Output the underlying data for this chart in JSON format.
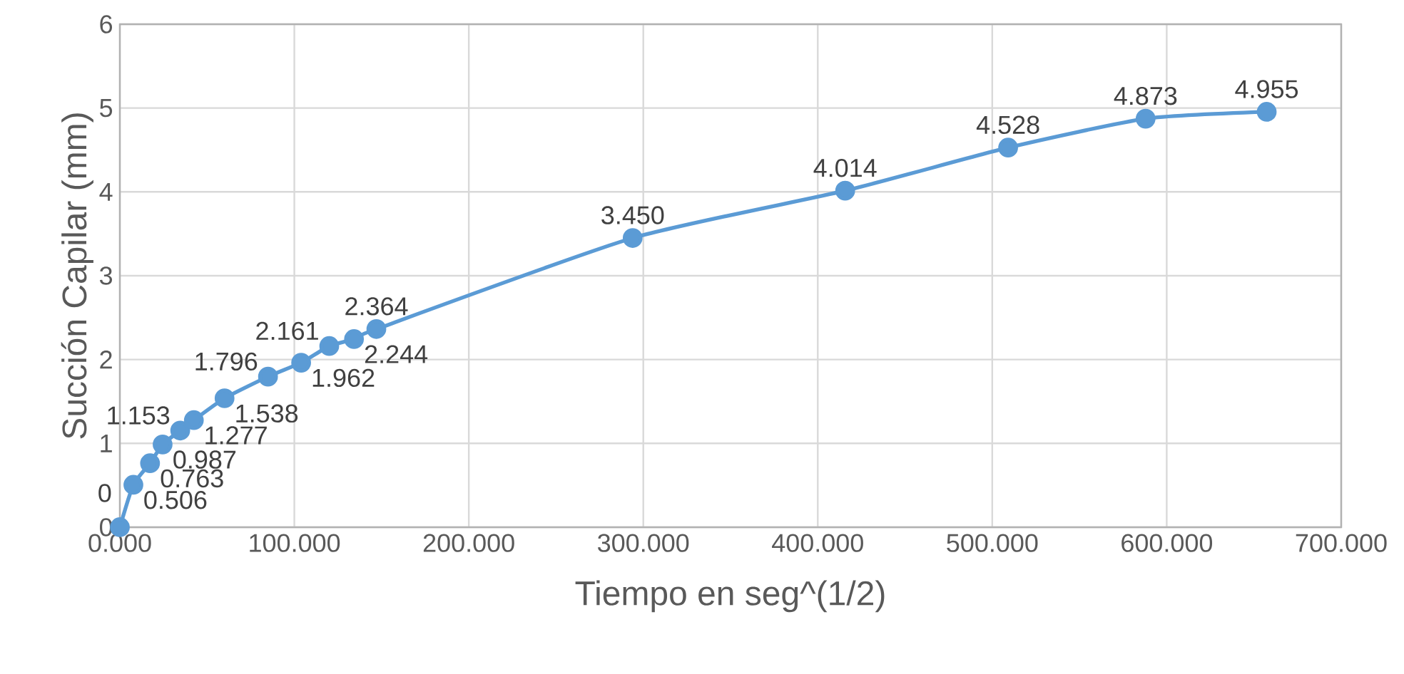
{
  "chart_data": {
    "type": "line",
    "xlabel": "Tiempo en seg^(1/2)",
    "ylabel": "Succión Capilar (mm)",
    "x": [
      0,
      7.75,
      17.3,
      24.5,
      34.6,
      42.4,
      60,
      84.9,
      103.9,
      120,
      134.2,
      147,
      293.9,
      415.7,
      509.1,
      587.9,
      657.3
    ],
    "values": [
      0,
      0.506,
      0.763,
      0.987,
      1.153,
      1.277,
      1.538,
      1.796,
      1.962,
      2.161,
      2.244,
      2.364,
      3.45,
      4.014,
      4.528,
      4.873,
      4.955
    ],
    "value_labels": [
      "0",
      "0.506",
      "0.763",
      "0.987",
      "1.153",
      "1.277",
      "1.538",
      "1.796",
      "1.962",
      "2.161",
      "2.244",
      "2.364",
      "3.450",
      "4.014",
      "4.528",
      "4.873",
      "4.955"
    ],
    "color": "#5b9bd5",
    "marker": "circle",
    "grid": true,
    "xlim": [
      0,
      700
    ],
    "xticks": [
      {
        "value": 0,
        "label": "0.000"
      },
      {
        "value": 100,
        "label": "100.000"
      },
      {
        "value": 200,
        "label": "200.000"
      },
      {
        "value": 300,
        "label": "300.000"
      },
      {
        "value": 400,
        "label": "400.000"
      },
      {
        "value": 500,
        "label": "500.000"
      },
      {
        "value": 600,
        "label": "600.000"
      },
      {
        "value": 700,
        "label": "700.000"
      }
    ],
    "ylim": [
      0,
      6
    ],
    "yticks": [
      0,
      1,
      2,
      3,
      4,
      5,
      6
    ]
  }
}
